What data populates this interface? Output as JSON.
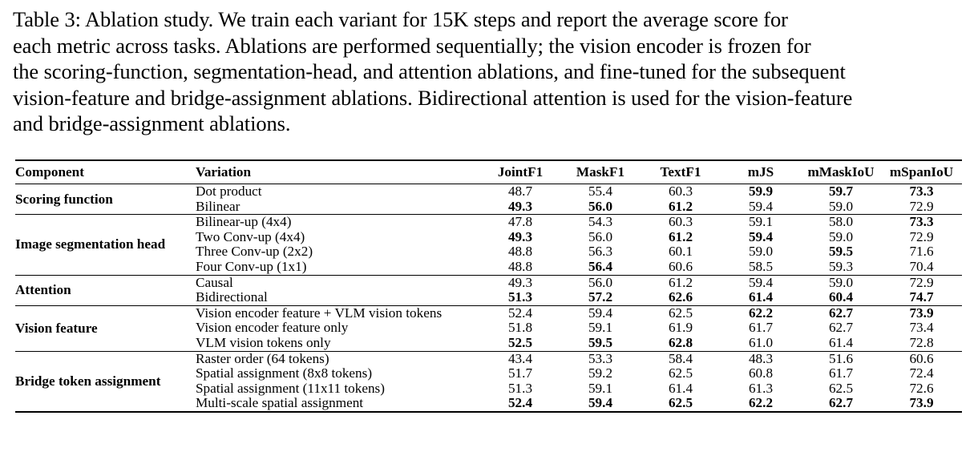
{
  "caption": {
    "lines": [
      "Table 3: Ablation study. We train each variant for 15K steps and report the average score for",
      "each metric across tasks. Ablations are performed sequentially; the vision encoder is frozen for",
      "the scoring-function, segmentation-head, and attention ablations, and fine-tuned for the subsequent",
      "vision-feature and bridge-assignment ablations. Bidirectional attention is used for the vision-feature",
      "and bridge-assignment ablations."
    ]
  },
  "table": {
    "headers": [
      "Component",
      "Variation",
      "JointF1",
      "MaskF1",
      "TextF1",
      "mJS",
      "mMaskIoU",
      "mSpanIoU"
    ],
    "groups": [
      {
        "component": "Scoring function",
        "rows": [
          {
            "variation": "Dot product",
            "values": [
              "48.7",
              "55.4",
              "60.3",
              "59.9",
              "59.7",
              "73.3"
            ],
            "bold": [
              false,
              false,
              false,
              true,
              true,
              true
            ]
          },
          {
            "variation": "Bilinear",
            "values": [
              "49.3",
              "56.0",
              "61.2",
              "59.4",
              "59.0",
              "72.9"
            ],
            "bold": [
              true,
              true,
              true,
              false,
              false,
              false
            ]
          }
        ]
      },
      {
        "component": "Image segmentation head",
        "rows": [
          {
            "variation": "Bilinear-up (4x4)",
            "values": [
              "47.8",
              "54.3",
              "60.3",
              "59.1",
              "58.0",
              "73.3"
            ],
            "bold": [
              false,
              false,
              false,
              false,
              false,
              true
            ]
          },
          {
            "variation": "Two Conv-up (4x4)",
            "values": [
              "49.3",
              "56.0",
              "61.2",
              "59.4",
              "59.0",
              "72.9"
            ],
            "bold": [
              true,
              false,
              true,
              true,
              false,
              false
            ]
          },
          {
            "variation": "Three Conv-up (2x2)",
            "values": [
              "48.8",
              "56.3",
              "60.1",
              "59.0",
              "59.5",
              "71.6"
            ],
            "bold": [
              false,
              false,
              false,
              false,
              true,
              false
            ]
          },
          {
            "variation": "Four Conv-up (1x1)",
            "values": [
              "48.8",
              "56.4",
              "60.6",
              "58.5",
              "59.3",
              "70.4"
            ],
            "bold": [
              false,
              true,
              false,
              false,
              false,
              false
            ]
          }
        ]
      },
      {
        "component": "Attention",
        "rows": [
          {
            "variation": "Causal",
            "values": [
              "49.3",
              "56.0",
              "61.2",
              "59.4",
              "59.0",
              "72.9"
            ],
            "bold": [
              false,
              false,
              false,
              false,
              false,
              false
            ]
          },
          {
            "variation": "Bidirectional",
            "values": [
              "51.3",
              "57.2",
              "62.6",
              "61.4",
              "60.4",
              "74.7"
            ],
            "bold": [
              true,
              true,
              true,
              true,
              true,
              true
            ]
          }
        ]
      },
      {
        "component": "Vision feature",
        "rows": [
          {
            "variation": "Vision encoder feature + VLM vision tokens",
            "values": [
              "52.4",
              "59.4",
              "62.5",
              "62.2",
              "62.7",
              "73.9"
            ],
            "bold": [
              false,
              false,
              false,
              true,
              true,
              true
            ]
          },
          {
            "variation": "Vision encoder feature only",
            "values": [
              "51.8",
              "59.1",
              "61.9",
              "61.7",
              "62.7",
              "73.4"
            ],
            "bold": [
              false,
              false,
              false,
              false,
              false,
              false
            ]
          },
          {
            "variation": "VLM vision tokens only",
            "values": [
              "52.5",
              "59.5",
              "62.8",
              "61.0",
              "61.4",
              "72.8"
            ],
            "bold": [
              true,
              true,
              true,
              false,
              false,
              false
            ]
          }
        ]
      },
      {
        "component": "Bridge token assignment",
        "rows": [
          {
            "variation": "Raster order (64 tokens)",
            "values": [
              "43.4",
              "53.3",
              "58.4",
              "48.3",
              "51.6",
              "60.6"
            ],
            "bold": [
              false,
              false,
              false,
              false,
              false,
              false
            ]
          },
          {
            "variation": "Spatial assignment (8x8 tokens)",
            "values": [
              "51.7",
              "59.2",
              "62.5",
              "60.8",
              "61.7",
              "72.4"
            ],
            "bold": [
              false,
              false,
              false,
              false,
              false,
              false
            ]
          },
          {
            "variation": "Spatial assignment (11x11 tokens)",
            "values": [
              "51.3",
              "59.1",
              "61.4",
              "61.3",
              "62.5",
              "72.6"
            ],
            "bold": [
              false,
              false,
              false,
              false,
              false,
              false
            ]
          },
          {
            "variation": "Multi-scale spatial assignment",
            "values": [
              "52.4",
              "59.4",
              "62.5",
              "62.2",
              "62.7",
              "73.9"
            ],
            "bold": [
              true,
              true,
              true,
              true,
              true,
              true
            ]
          }
        ]
      }
    ]
  }
}
